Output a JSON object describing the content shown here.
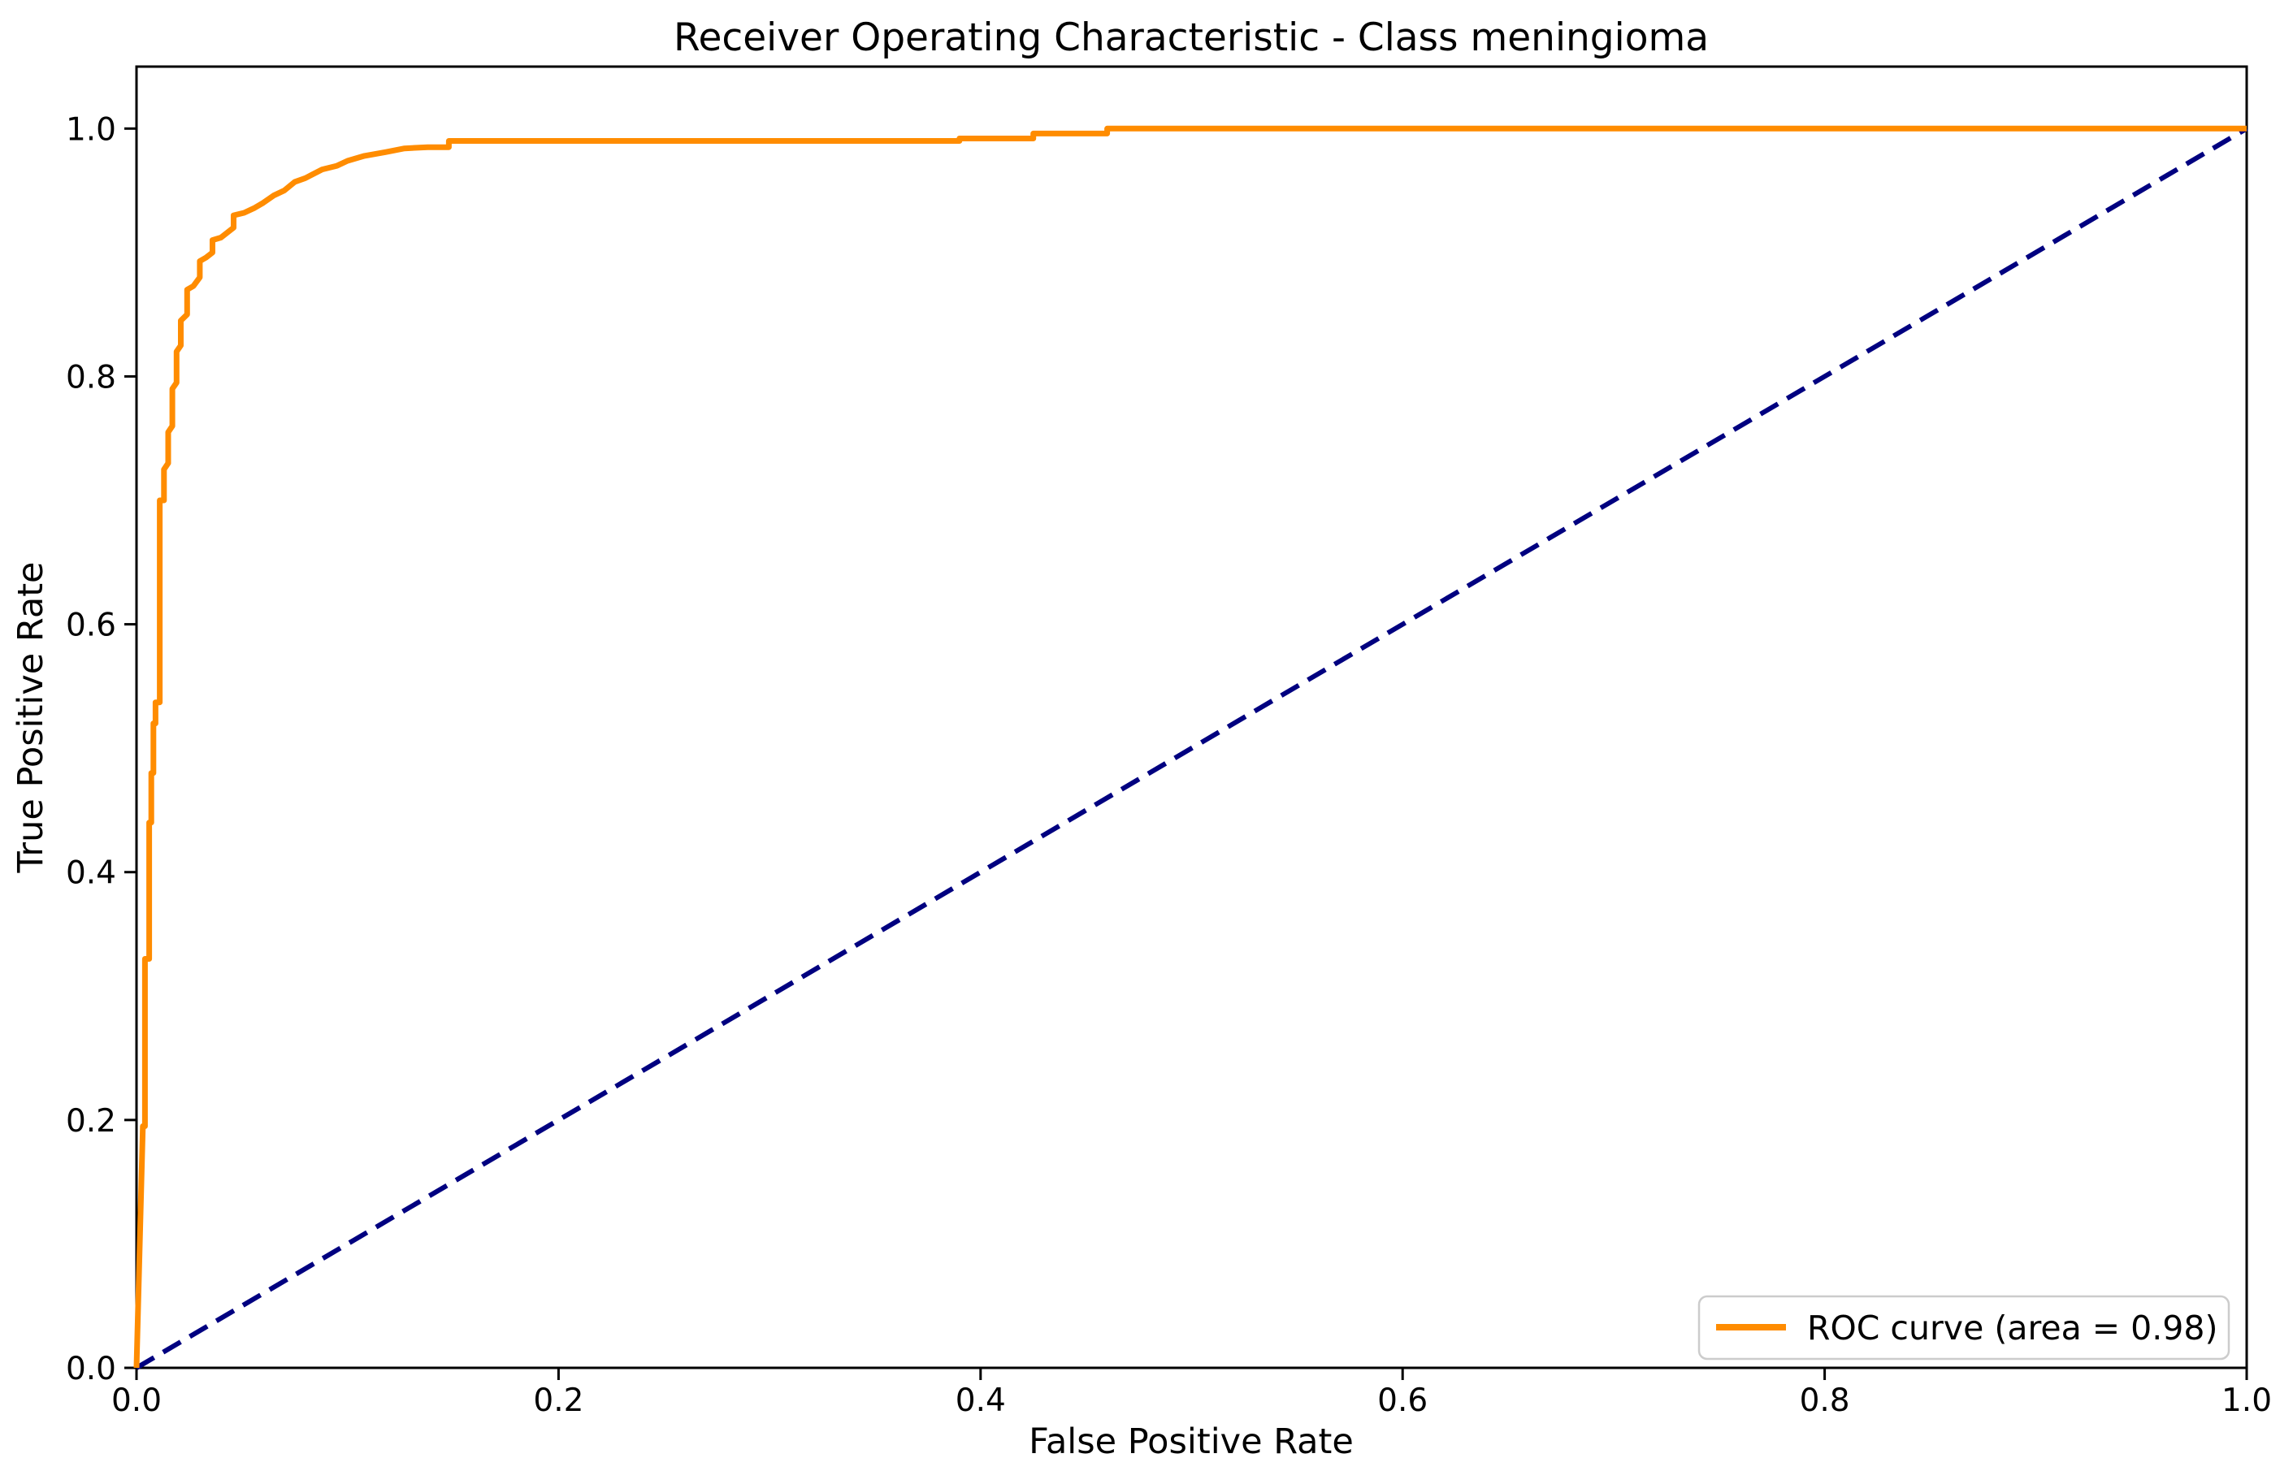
{
  "chart_data": {
    "type": "line",
    "title": "Receiver Operating Characteristic - Class meningioma",
    "xlabel": "False Positive Rate",
    "ylabel": "True Positive Rate",
    "xlim": [
      0.0,
      1.0
    ],
    "ylim": [
      0.0,
      1.05
    ],
    "x_ticks": [
      0.0,
      0.2,
      0.4,
      0.6,
      0.8,
      1.0
    ],
    "y_ticks": [
      0.0,
      0.2,
      0.4,
      0.6,
      0.8,
      1.0
    ],
    "tick_decimals": 1,
    "grid": false,
    "legend": {
      "position": "lower right",
      "entries": [
        {
          "label": "ROC curve (area = 0.98)",
          "color": "#ff8c00"
        }
      ]
    },
    "series": [
      {
        "name": "ROC curve (area = 0.98)",
        "role": "roc-curve",
        "color": "#ff8c00",
        "style": "solid",
        "auc": 0.98,
        "points": [
          [
            0.0,
            0.0
          ],
          [
            0.003,
            0.195
          ],
          [
            0.004,
            0.195
          ],
          [
            0.004,
            0.33
          ],
          [
            0.006,
            0.33
          ],
          [
            0.006,
            0.44
          ],
          [
            0.007,
            0.44
          ],
          [
            0.007,
            0.48
          ],
          [
            0.008,
            0.48
          ],
          [
            0.008,
            0.52
          ],
          [
            0.009,
            0.52
          ],
          [
            0.009,
            0.537
          ],
          [
            0.011,
            0.537
          ],
          [
            0.011,
            0.7
          ],
          [
            0.013,
            0.7
          ],
          [
            0.013,
            0.725
          ],
          [
            0.015,
            0.73
          ],
          [
            0.015,
            0.755
          ],
          [
            0.017,
            0.76
          ],
          [
            0.017,
            0.79
          ],
          [
            0.019,
            0.795
          ],
          [
            0.019,
            0.82
          ],
          [
            0.021,
            0.825
          ],
          [
            0.021,
            0.845
          ],
          [
            0.024,
            0.85
          ],
          [
            0.024,
            0.87
          ],
          [
            0.027,
            0.873
          ],
          [
            0.03,
            0.88
          ],
          [
            0.03,
            0.893
          ],
          [
            0.033,
            0.896
          ],
          [
            0.036,
            0.9
          ],
          [
            0.036,
            0.91
          ],
          [
            0.04,
            0.912
          ],
          [
            0.043,
            0.916
          ],
          [
            0.046,
            0.92
          ],
          [
            0.046,
            0.93
          ],
          [
            0.051,
            0.932
          ],
          [
            0.056,
            0.936
          ],
          [
            0.06,
            0.94
          ],
          [
            0.065,
            0.946
          ],
          [
            0.07,
            0.95
          ],
          [
            0.075,
            0.957
          ],
          [
            0.08,
            0.96
          ],
          [
            0.088,
            0.967
          ],
          [
            0.095,
            0.97
          ],
          [
            0.1,
            0.974
          ],
          [
            0.108,
            0.978
          ],
          [
            0.118,
            0.981
          ],
          [
            0.127,
            0.984
          ],
          [
            0.138,
            0.985
          ],
          [
            0.148,
            0.985
          ],
          [
            0.148,
            0.99
          ],
          [
            0.39,
            0.99
          ],
          [
            0.39,
            0.992
          ],
          [
            0.425,
            0.992
          ],
          [
            0.425,
            0.996
          ],
          [
            0.46,
            0.996
          ],
          [
            0.46,
            1.0
          ],
          [
            1.0,
            1.0
          ]
        ]
      },
      {
        "name": "chance-diagonal",
        "role": "reference-line",
        "color": "#000080",
        "style": "dashed",
        "points": [
          [
            0.0,
            0.0
          ],
          [
            1.0,
            1.0
          ]
        ]
      }
    ]
  },
  "colors": {
    "background": "#ffffff",
    "axis": "#000000",
    "text": "#000000",
    "legend_border": "#cccccc",
    "legend_fill": "#ffffff"
  }
}
